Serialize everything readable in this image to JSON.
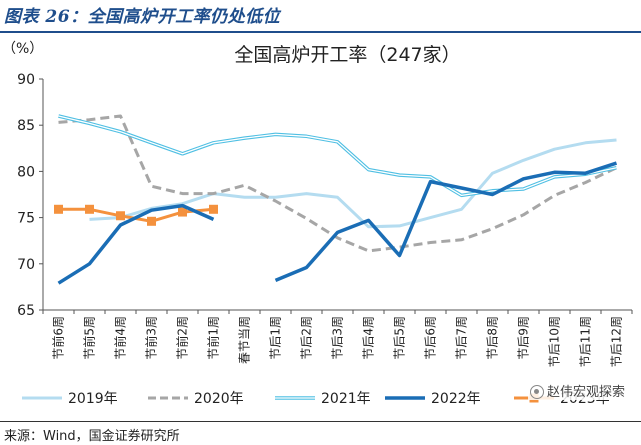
{
  "figure_title": "图表 26：全国高炉开工率仍处低位",
  "source": "来源：Wind，国金证券研究所",
  "watermark": "赵伟宏观探索",
  "chart_data": {
    "type": "line",
    "title": "全国高炉开工率（247家）",
    "ylabel": "（%）",
    "xlabel": "",
    "ylim": [
      65,
      90
    ],
    "yticks": [
      65,
      70,
      75,
      80,
      85,
      90
    ],
    "grid": false,
    "legend_position": "bottom",
    "categories": [
      "节前6周",
      "节前5周",
      "节前4周",
      "节前3周",
      "节前2周",
      "节前1周",
      "春节当周",
      "节后1周",
      "节后2周",
      "节后3周",
      "节后4周",
      "节后5周",
      "节后6周",
      "节后7周",
      "节后8周",
      "节后9周",
      "节后10周",
      "节后11周",
      "节后12周"
    ],
    "series": [
      {
        "name": "2019年",
        "color": "#b4dcf0",
        "style": "solid",
        "width": 3,
        "marker": "none",
        "values": [
          null,
          74.8,
          75.0,
          76.0,
          76.5,
          77.6,
          77.2,
          77.2,
          77.6,
          77.2,
          74.0,
          74.1,
          75.0,
          75.9,
          79.8,
          81.2,
          82.4,
          83.1,
          83.4
        ]
      },
      {
        "name": "2020年",
        "color": "#a6a6a6",
        "style": "dashed",
        "width": 3,
        "marker": "none",
        "values": [
          85.3,
          85.6,
          86.0,
          78.4,
          77.6,
          77.6,
          78.5,
          76.8,
          74.9,
          72.8,
          71.4,
          71.8,
          72.3,
          72.6,
          73.8,
          75.3,
          77.4,
          78.8,
          80.4
        ]
      },
      {
        "name": "2021年",
        "color": "#4fbfe3",
        "style": "double",
        "width": 3,
        "marker": "none",
        "values": [
          86.0,
          85.2,
          84.3,
          83.1,
          81.9,
          83.1,
          83.6,
          84.0,
          83.8,
          83.2,
          80.2,
          79.6,
          79.4,
          77.4,
          77.9,
          78.1,
          79.4,
          79.7,
          80.4
        ]
      },
      {
        "name": "2022年",
        "color": "#1a6db5",
        "style": "solid",
        "width": 3.5,
        "marker": "none",
        "values": [
          67.9,
          70.0,
          74.2,
          75.8,
          76.3,
          74.8,
          null,
          68.2,
          69.6,
          73.4,
          74.7,
          70.9,
          78.9,
          78.2,
          77.5,
          79.2,
          79.9,
          79.8,
          80.9
        ]
      },
      {
        "name": "2023年",
        "color": "#f4913d",
        "style": "solid",
        "width": 3,
        "marker": "square",
        "values": [
          75.9,
          75.9,
          75.2,
          74.6,
          75.6,
          75.9,
          null,
          null,
          null,
          null,
          null,
          null,
          null,
          null,
          null,
          null,
          null,
          null,
          null
        ]
      }
    ]
  }
}
